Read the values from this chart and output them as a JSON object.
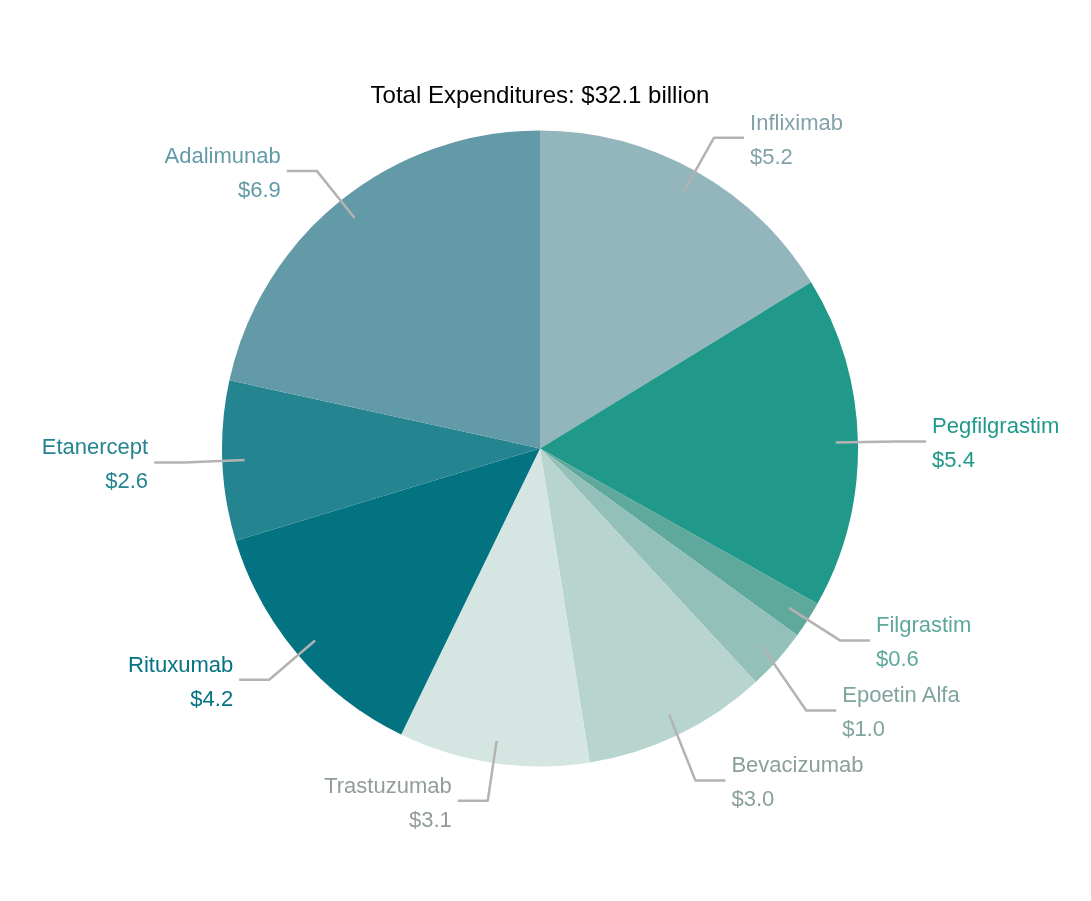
{
  "chart_data": {
    "type": "pie",
    "title": "Total Expenditures: $32.1 billion",
    "categories": [
      "Infliximab",
      "Pegfilgrastim",
      "Filgrastim",
      "Epoetin Alfa",
      "Bevacizumab",
      "Trastuzumab",
      "Rituxumab",
      "Etanercept",
      "Adalimunab"
    ],
    "values": [
      5.2,
      5.4,
      0.6,
      1.0,
      3.0,
      3.1,
      4.2,
      2.6,
      6.9
    ],
    "value_labels": [
      "$5.2",
      "$5.4",
      "$0.6",
      "$1.0",
      "$3.0",
      "$3.1",
      "$4.2",
      "$2.6",
      "$6.9"
    ],
    "colors": [
      "#93b5bc",
      "#20998a",
      "#5fa89c",
      "#93c0b8",
      "#b8d4cf",
      "#d5e5e2",
      "#037382",
      "#248490",
      "#629ba7"
    ],
    "legend": false
  }
}
